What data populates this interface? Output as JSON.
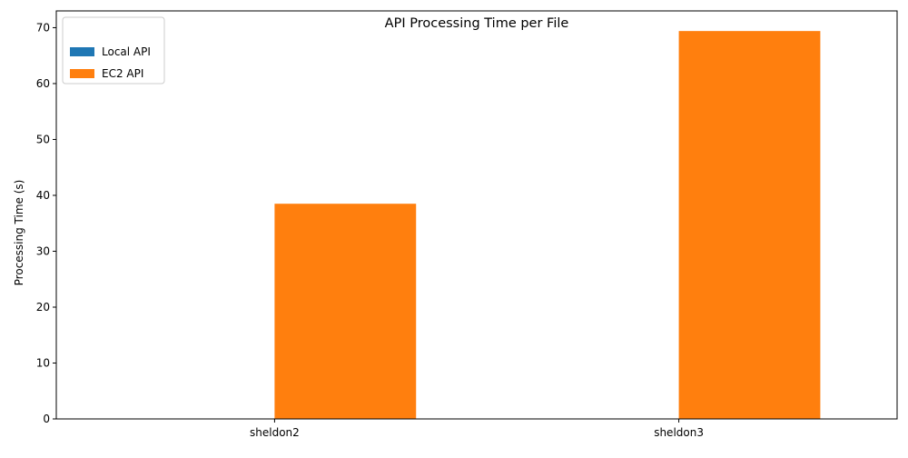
{
  "chart_data": {
    "type": "bar",
    "title": "API Processing Time per File",
    "xlabel": "",
    "ylabel": "Processing Time (s)",
    "categories": [
      "sheldon2",
      "sheldon3"
    ],
    "series": [
      {
        "name": "Local API",
        "values": [
          0,
          0
        ],
        "color": "#1f77b4"
      },
      {
        "name": "EC2 API",
        "values": [
          38.5,
          69.4
        ],
        "color": "#ff7f0e"
      }
    ],
    "ylim": [
      0,
      73
    ],
    "yticks": [
      0,
      10,
      20,
      30,
      40,
      50,
      60,
      70
    ],
    "grid": false,
    "legend_position": "top-left"
  }
}
